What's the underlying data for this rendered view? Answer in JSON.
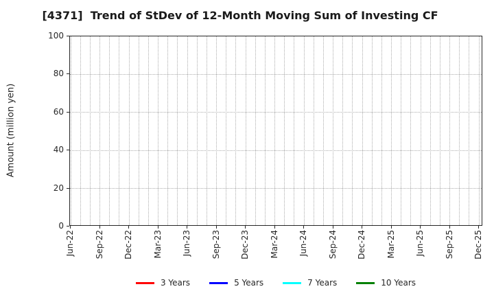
{
  "chart_data": {
    "type": "line",
    "title": "[4371]  Trend of StDev of 12-Month Moving Sum of Investing CF",
    "ylabel": "Amount (million yen)",
    "ylim": [
      0,
      100
    ],
    "yticks": [
      0,
      20,
      40,
      60,
      80,
      100
    ],
    "x_tick_labels": [
      "Jun-22",
      "Sep-22",
      "Dec-22",
      "Mar-23",
      "Jun-23",
      "Sep-23",
      "Dec-23",
      "Mar-24",
      "Jun-24",
      "Sep-24",
      "Dec-24",
      "Mar-25",
      "Jun-25",
      "Sep-25",
      "Dec-25"
    ],
    "months_total": 43,
    "x_label_step_months": 3,
    "grid": "dotted",
    "grid_color": "#ababab",
    "axis_color": "#262626",
    "legend_position": "bottom",
    "series": [
      {
        "name": "3 Years",
        "color": "#ff0000",
        "values": []
      },
      {
        "name": "5 Years",
        "color": "#0000ff",
        "values": []
      },
      {
        "name": "7 Years",
        "color": "#00ffff",
        "values": []
      },
      {
        "name": "10 Years",
        "color": "#008000",
        "values": []
      }
    ]
  }
}
